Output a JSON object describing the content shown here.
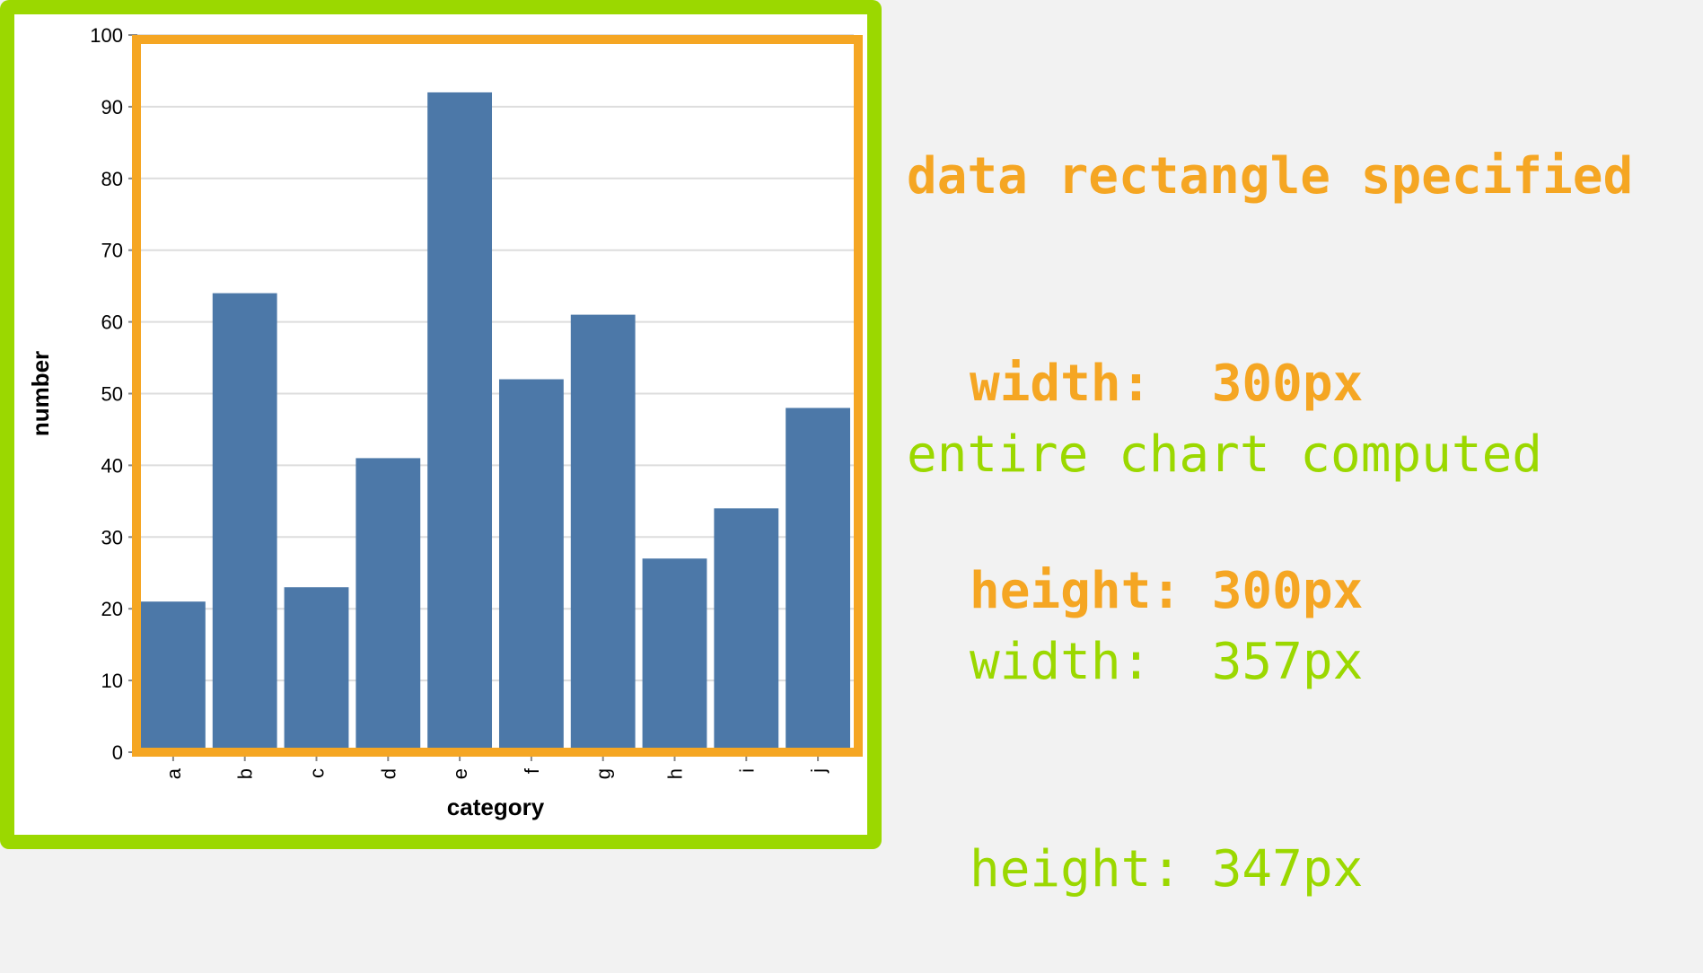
{
  "chart_data": {
    "type": "bar",
    "categories": [
      "a",
      "b",
      "c",
      "d",
      "e",
      "f",
      "g",
      "h",
      "i",
      "j"
    ],
    "values": [
      21,
      64,
      23,
      41,
      92,
      52,
      61,
      27,
      34,
      48
    ],
    "xlabel": "category",
    "ylabel": "number",
    "ylim": [
      0,
      100
    ],
    "yticks": [
      "0",
      "10",
      "20",
      "30",
      "40",
      "50",
      "60",
      "70",
      "80",
      "90",
      "100"
    ],
    "grid": true,
    "bar_color": "#4c78a8",
    "gridline_color": "#dddddd",
    "axis_color": "#888888"
  },
  "annotations": {
    "data_rectangle": {
      "heading": "data rectangle specified",
      "width_line": "width:  300px",
      "height_line": "height: 300px",
      "color": "#f5a623"
    },
    "entire_chart": {
      "heading": "entire chart computed",
      "width_line": "width:  357px",
      "height_line": "height: 347px",
      "color": "#9bd800"
    },
    "frame_color": "#9bd800"
  }
}
